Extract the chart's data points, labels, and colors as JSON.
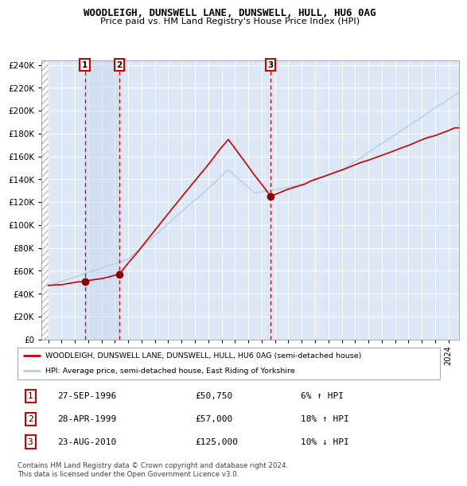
{
  "title": "WOODLEIGH, DUNSWELL LANE, DUNSWELL, HULL, HU6 0AG",
  "subtitle": "Price paid vs. HM Land Registry's House Price Index (HPI)",
  "legend_line1": "WOODLEIGH, DUNSWELL LANE, DUNSWELL, HULL, HU6 0AG (semi-detached house)",
  "legend_line2": "HPI: Average price, semi-detached house, East Riding of Yorkshire",
  "footer": "Contains HM Land Registry data © Crown copyright and database right 2024.\nThis data is licensed under the Open Government Licence v3.0.",
  "transactions": [
    {
      "num": 1,
      "date": "27-SEP-1996",
      "price": 50750,
      "pct": "6%",
      "dir": "↑",
      "year": 1996.75
    },
    {
      "num": 2,
      "date": "28-APR-1999",
      "price": 57000,
      "pct": "18%",
      "dir": "↑",
      "year": 1999.33
    },
    {
      "num": 3,
      "date": "23-AUG-2010",
      "price": 125000,
      "pct": "10%",
      "dir": "↓",
      "year": 2010.65
    }
  ],
  "hpi_color": "#b8d0e8",
  "price_color": "#cc0000",
  "marker_color": "#880000",
  "bg_color": "#dce8f5",
  "ylim": [
    0,
    244000
  ],
  "yticks": [
    0,
    20000,
    40000,
    60000,
    80000,
    100000,
    120000,
    140000,
    160000,
    180000,
    200000,
    220000,
    240000
  ],
  "xlim_start": 1993.5,
  "xlim_end": 2024.8
}
